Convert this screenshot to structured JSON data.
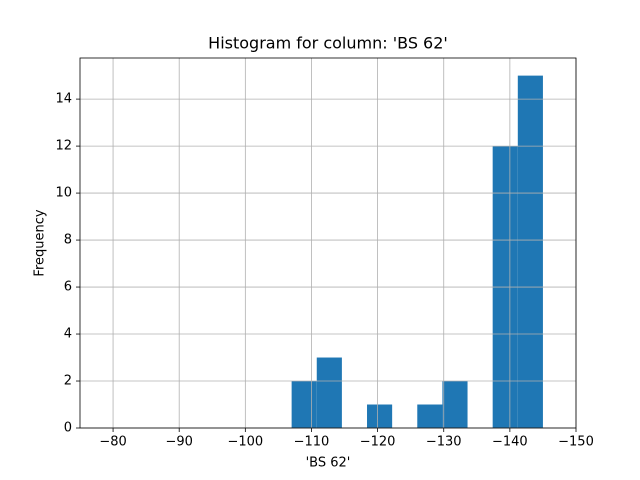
{
  "chart_data": {
    "type": "histogram",
    "title": "Histogram for column: 'BS 62'",
    "xlabel": "'BS 62'",
    "ylabel": "Frequency",
    "bins": [
      -107,
      -110.8,
      -114.6,
      -118.4,
      -122.2,
      -126,
      -129.8,
      -133.6,
      -137.4,
      -141.2,
      -145
    ],
    "values": [
      2,
      3,
      0,
      1,
      0,
      1,
      2,
      0,
      12,
      15
    ],
    "color": "#1f77b4",
    "xlim": [
      -75,
      -150
    ],
    "xticks": [
      {
        "value": -80,
        "label": "−80"
      },
      {
        "value": -90,
        "label": "−90"
      },
      {
        "value": -100,
        "label": "−100"
      },
      {
        "value": -110,
        "label": "−110"
      },
      {
        "value": -120,
        "label": "−120"
      },
      {
        "value": -130,
        "label": "−130"
      },
      {
        "value": -140,
        "label": "−140"
      },
      {
        "value": -150,
        "label": "−150"
      }
    ],
    "ylim": [
      0,
      15.75
    ],
    "yticks": [
      0,
      2,
      4,
      6,
      8,
      10,
      12,
      14
    ],
    "grid": true
  }
}
